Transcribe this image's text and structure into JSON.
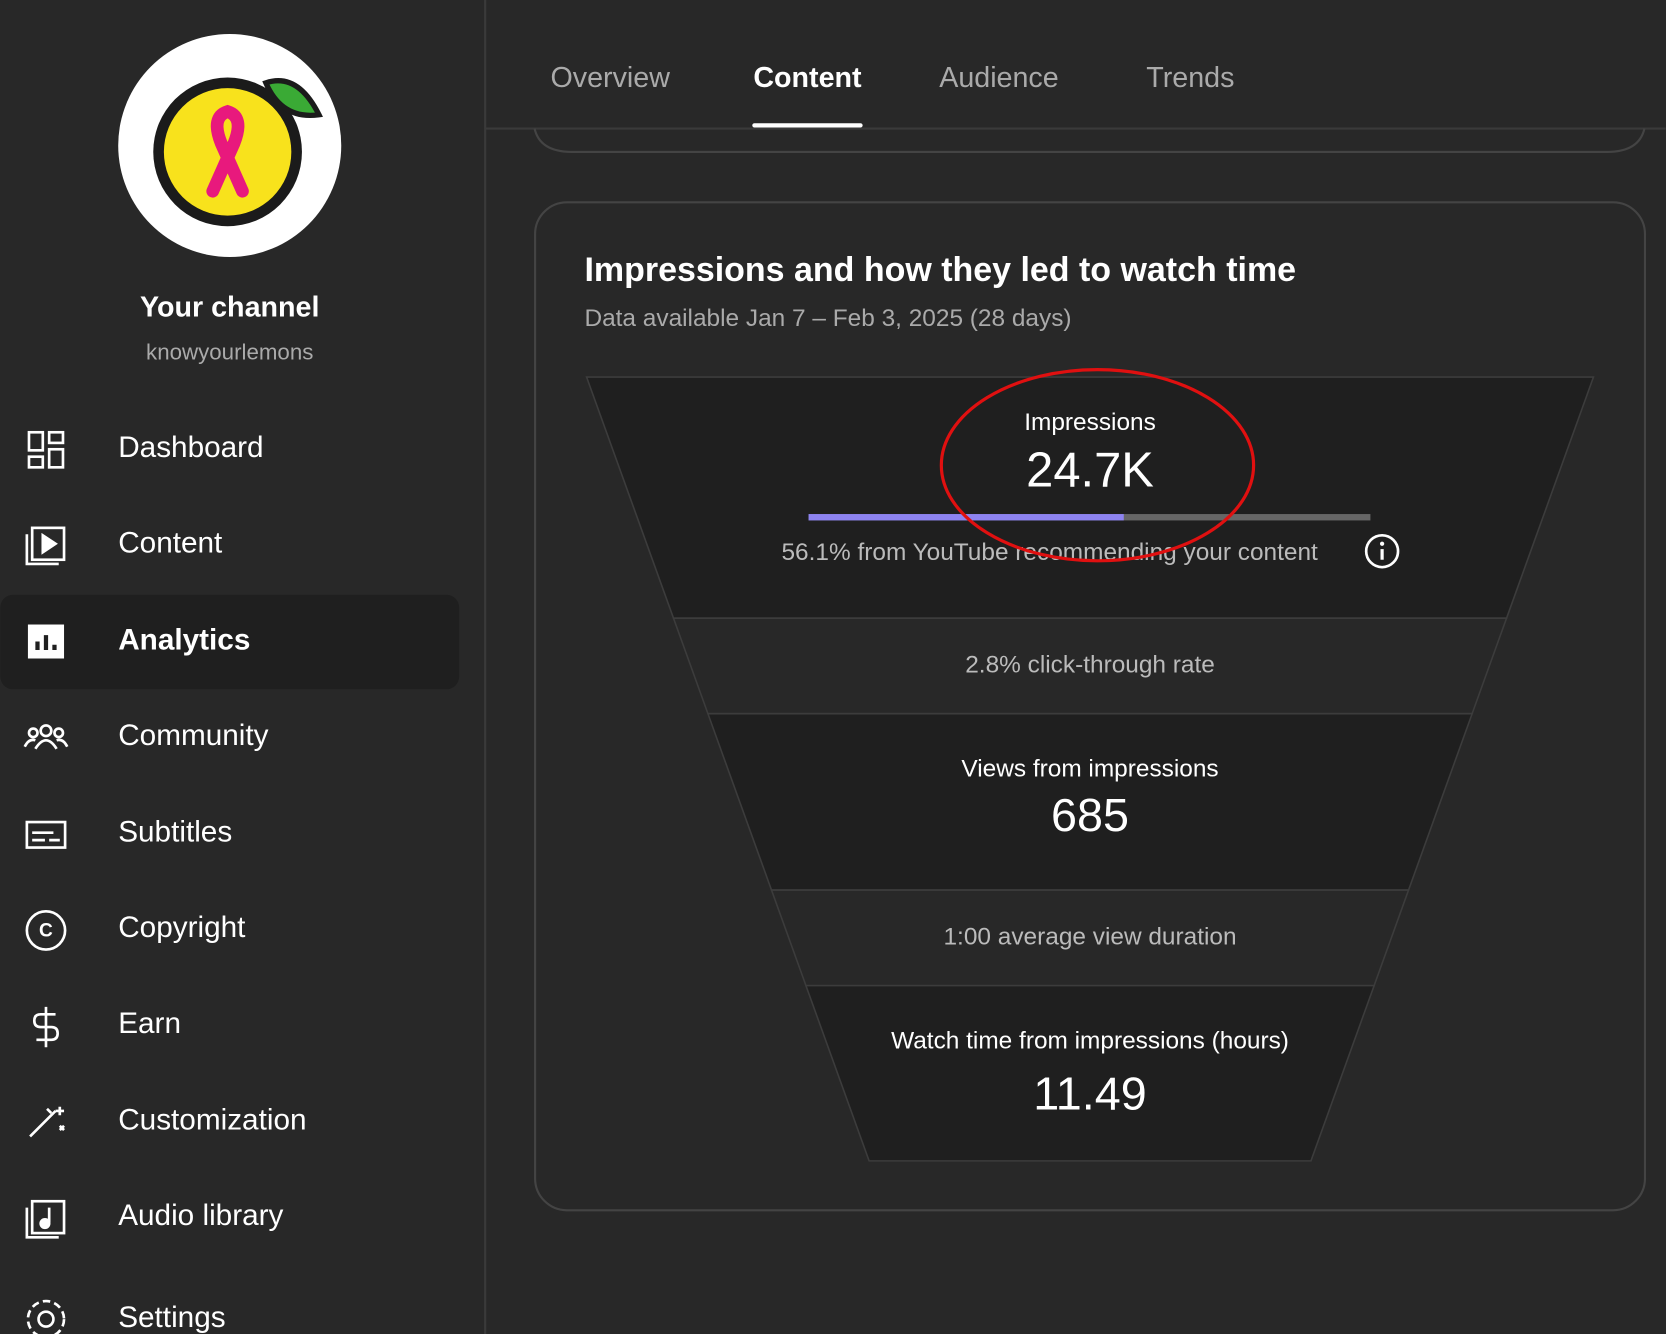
{
  "sidebar": {
    "channel_title": "Your channel",
    "handle": "knowyourlemons",
    "nav": [
      "Dashboard",
      "Content",
      "Analytics",
      "Community",
      "Subtitles",
      "Copyright",
      "Earn",
      "Customization",
      "Audio library",
      "Settings"
    ],
    "active": 2
  },
  "tabs": {
    "items": [
      "Overview",
      "Content",
      "Audience",
      "Trends"
    ],
    "active": 1
  },
  "card": {
    "title": "Impressions and how they led to watch time",
    "subtitle": "Data available Jan 7 – Feb 3, 2025 (28 days)",
    "funnel": {
      "impressions": {
        "label": "Impressions",
        "value": "24.7K",
        "recommended_share": 56.1,
        "note": "56.1% from YouTube recommending your content"
      },
      "ctr": "2.8% click-through rate",
      "views": {
        "label": "Views from impressions",
        "value": "685"
      },
      "avg_duration": "1:00 average view duration",
      "watch_time": {
        "label": "Watch time from impressions (hours)",
        "value": "11.49"
      }
    }
  }
}
